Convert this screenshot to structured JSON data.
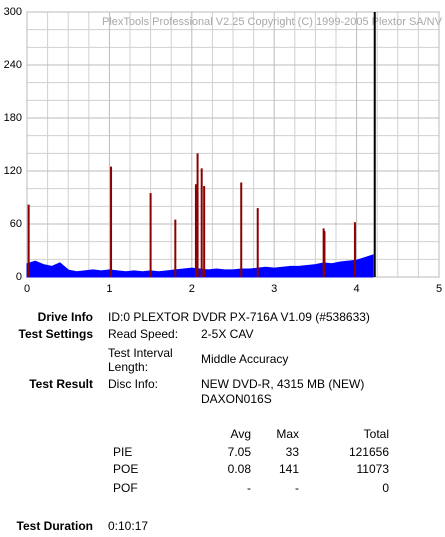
{
  "chart_data": {
    "type": "area-spikes",
    "title": "PlexTools Professional V2.25 Copyright (C) 1999-2005 Plextor SA/NV",
    "xlim": [
      0,
      5
    ],
    "xticks": [
      0,
      1,
      2,
      3,
      4,
      5
    ],
    "ylim": [
      0,
      300
    ],
    "yticks": [
      0,
      60,
      120,
      180,
      240,
      300
    ],
    "grid": true,
    "series": [
      {
        "name": "PIE",
        "color": "#0000ff",
        "x": [
          0,
          0.1,
          0.2,
          0.3,
          0.4,
          0.5,
          0.6,
          0.7,
          0.8,
          0.9,
          1.0,
          1.1,
          1.2,
          1.3,
          1.4,
          1.5,
          1.6,
          1.7,
          1.8,
          1.9,
          2.0,
          2.1,
          2.2,
          2.3,
          2.4,
          2.5,
          2.6,
          2.7,
          2.8,
          2.9,
          3.0,
          3.1,
          3.2,
          3.3,
          3.4,
          3.5,
          3.6,
          3.7,
          3.8,
          3.9,
          4.0,
          4.1,
          4.2
        ],
        "values": [
          15,
          18,
          14,
          12,
          16,
          8,
          6,
          7,
          8,
          7,
          8,
          7,
          6,
          7,
          6,
          7,
          6,
          7,
          8,
          9,
          10,
          9,
          8,
          9,
          8,
          8,
          9,
          9,
          10,
          11,
          10,
          11,
          12,
          12,
          13,
          14,
          16,
          15,
          17,
          18,
          19,
          22,
          25
        ]
      },
      {
        "name": "POE",
        "color": "#8b0000",
        "x": [
          0.02,
          1.02,
          1.5,
          1.8,
          2.05,
          2.07,
          2.12,
          2.15,
          2.6,
          2.8,
          3.6,
          3.61,
          3.98
        ],
        "values": [
          82,
          125,
          95,
          65,
          105,
          140,
          123,
          103,
          107,
          78,
          55,
          52,
          62
        ]
      },
      {
        "name": "End",
        "color": "#000000",
        "x": [
          4.22
        ],
        "values": [
          300
        ]
      }
    ]
  },
  "info": {
    "drive_info": {
      "label": "Drive Info",
      "value": "ID:0 PLEXTOR DVDR PX-716A V1.09 (#538633)"
    },
    "test_settings": {
      "label": "Test Settings",
      "items": [
        {
          "field": "Read Speed:",
          "value": "2-5X CAV"
        },
        {
          "field": "Test Interval Length:",
          "value": "Middle Accuracy"
        }
      ]
    },
    "test_result": {
      "label": "Test Result",
      "field": "Disc Info:",
      "lines": [
        "NEW DVD-R, 4315 MB (NEW)",
        "DAXON016S"
      ]
    },
    "stats": {
      "headers": [
        "Avg",
        "Max",
        "Total"
      ],
      "rows": [
        [
          "PIE",
          7.05,
          33,
          121656
        ],
        [
          "POE",
          0.08,
          141,
          11073
        ],
        [
          "POF",
          "-",
          "-",
          0
        ]
      ]
    },
    "test_duration": {
      "label": "Test Duration",
      "value": "0:10:17"
    }
  }
}
